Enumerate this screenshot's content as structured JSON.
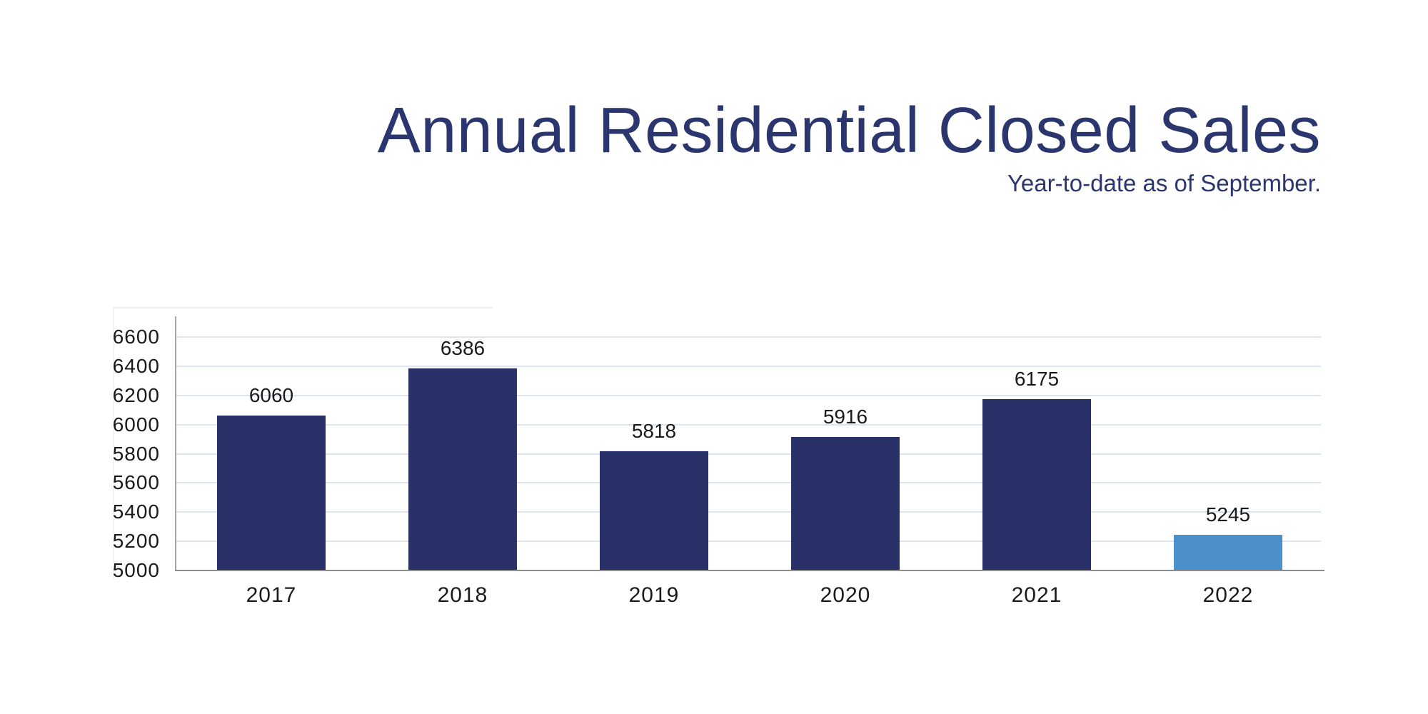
{
  "header": {
    "title": "Annual Residential Closed Sales",
    "subtitle": "Year-to-date as of September."
  },
  "chart_data": {
    "type": "bar",
    "title": "Annual Residential Closed Sales",
    "subtitle": "Year-to-date as of September.",
    "categories": [
      "2017",
      "2018",
      "2019",
      "2020",
      "2021",
      "2022"
    ],
    "values": [
      6060,
      6386,
      5818,
      5916,
      6175,
      5245
    ],
    "xlabel": "",
    "ylabel": "",
    "ylim": [
      5000,
      6600
    ],
    "yticks": [
      5000,
      5200,
      5400,
      5600,
      5800,
      6000,
      6200,
      6400,
      6600
    ],
    "grid": "horizontal",
    "legend": "none",
    "highlight_index": 5,
    "colors": {
      "bar": "#2a3168",
      "highlight_bar": "#4c90cb",
      "gridline": "#dde4f1",
      "y_axis": "#a6a6a6",
      "x_axis": "#8d8d8d",
      "tick_text": "#1a1a1a",
      "title_text": "#2b356e"
    }
  }
}
